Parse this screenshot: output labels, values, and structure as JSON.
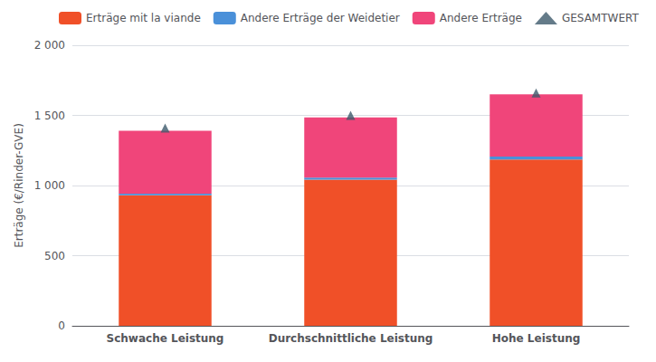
{
  "chart_data": {
    "type": "bar",
    "stacked": true,
    "categories": [
      "Schwache Leistung",
      "Durchschnittliche Leistung",
      "Hohe Leistung"
    ],
    "series": [
      {
        "name": "Erträge mit la viande",
        "color": "#f05028",
        "values": [
          930,
          1042,
          1185
        ]
      },
      {
        "name": "Andere Erträge der Weidetier",
        "color": "#4a90d9",
        "values": [
          12,
          15,
          22
        ]
      },
      {
        "name": "Andere Erträge",
        "color": "#f0457a",
        "values": [
          448,
          428,
          443
        ]
      },
      {
        "name": "GESAMTWERT",
        "type": "scatter",
        "marker": "triangle",
        "color": "#3d5a6b",
        "values": [
          1410,
          1500,
          1660
        ]
      }
    ],
    "ylabel": "Erträge (€/Rinder-GVE)",
    "ylim": [
      0,
      2000
    ],
    "yticks": [
      0,
      500,
      {
        "value": 1000,
        "label": "1 000"
      },
      {
        "value": 1500,
        "label": "1 500"
      },
      {
        "value": 2000,
        "label": "2 000"
      }
    ],
    "grid": true,
    "legend": "top"
  }
}
